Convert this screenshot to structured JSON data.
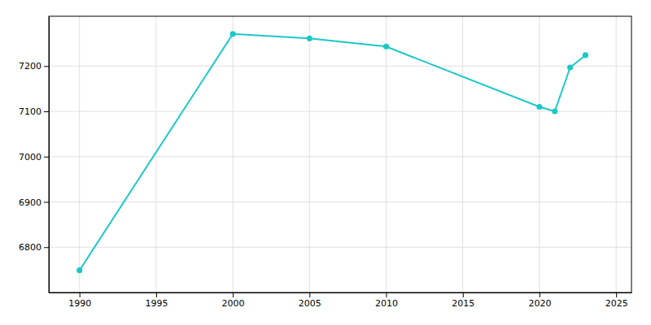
{
  "chart_data": {
    "type": "line",
    "x": [
      1990,
      2000,
      2005,
      2010,
      2020,
      2021,
      2022,
      2023
    ],
    "values": [
      6749,
      7271,
      7261,
      7243,
      7110,
      7100,
      7197,
      7224
    ],
    "color": "#1bc8c8",
    "marker": "circle",
    "xlim": [
      1988,
      2026
    ],
    "ylim": [
      6700,
      7310
    ],
    "xticks": [
      1990,
      1995,
      2000,
      2005,
      2010,
      2015,
      2020,
      2025
    ],
    "yticks": [
      6800,
      6900,
      7000,
      7100,
      7200
    ],
    "grid": true
  }
}
